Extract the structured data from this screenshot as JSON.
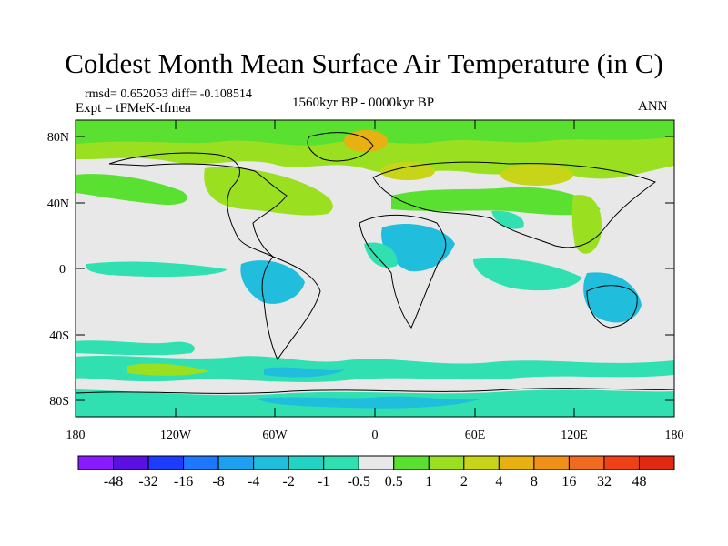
{
  "title": "Coldest Month Mean Surface Air Temperature (in C)",
  "stats": "rmsd= 0.652053 diff= -0.108514",
  "experiment": "Expt = tFMeK-tfmea",
  "period": "1560kyr BP - 0000kyr BP",
  "season": "ANN",
  "axes": {
    "lat_ticks": [
      {
        "label": "80N",
        "value": 80
      },
      {
        "label": "40N",
        "value": 40
      },
      {
        "label": "0",
        "value": 0
      },
      {
        "label": "40S",
        "value": -40
      },
      {
        "label": "80S",
        "value": -80
      }
    ],
    "lon_ticks": [
      {
        "label": "180",
        "value": -180
      },
      {
        "label": "120W",
        "value": -120
      },
      {
        "label": "60W",
        "value": -60
      },
      {
        "label": "0",
        "value": 0
      },
      {
        "label": "60E",
        "value": 60
      },
      {
        "label": "120E",
        "value": 120
      },
      {
        "label": "180",
        "value": 180
      }
    ]
  },
  "colorbar": {
    "labels": [
      "-48",
      "-32",
      "-16",
      "-8",
      "-4",
      "-2",
      "-1",
      "-0.5",
      "0.5",
      "1",
      "2",
      "4",
      "8",
      "16",
      "32",
      "48"
    ],
    "colors": [
      "#8a1aff",
      "#5a10e0",
      "#1e3cff",
      "#1e78ff",
      "#1ea0f0",
      "#20bedc",
      "#22d2c2",
      "#30e0b0",
      "#e8e8e8",
      "#5ae030",
      "#9ae020",
      "#c8d418",
      "#e8b010",
      "#f09018",
      "#f06a20",
      "#f04018",
      "#e02a10"
    ]
  },
  "palette": {
    "neutral": "#e8e8e8",
    "warm1": "#5ae030",
    "warm2": "#9ae020",
    "warm3": "#c8d418",
    "warm4": "#e8b010",
    "cool1": "#30e0b0",
    "cool2": "#22d2c2",
    "cool3": "#20bedc"
  }
}
